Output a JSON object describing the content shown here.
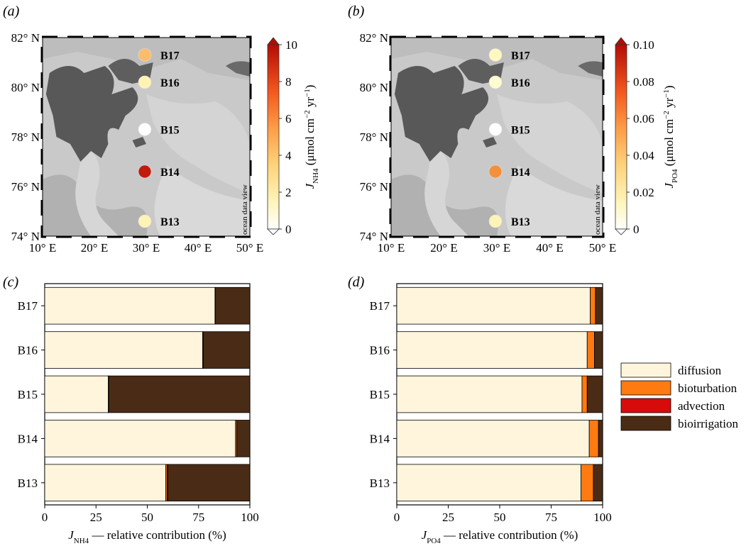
{
  "chart_data": [
    {
      "type": "map",
      "panel": "(a)",
      "lat_ticks": [
        "74° N",
        "76° N",
        "78° N",
        "80° N",
        "82° N"
      ],
      "lon_ticks": [
        "10° E",
        "20° E",
        "30° E",
        "40° E",
        "50° E"
      ],
      "watermark": "ocean data view",
      "colorbar": {
        "label_main": "J",
        "label_sub": "NH4",
        "label_unit": " (μmol cm",
        "label_exp1": "−2",
        "label_mid": " yr",
        "label_exp2": "−1",
        "label_end": ")",
        "ticks": [
          "0",
          "2",
          "4",
          "6",
          "8",
          "10"
        ],
        "range": [
          0,
          10
        ]
      },
      "stations": [
        {
          "name": "B17",
          "lat": 81.3,
          "lon": 30,
          "value": 3.6,
          "color": "#fdbb6c"
        },
        {
          "name": "B16",
          "lat": 80.2,
          "lon": 30,
          "value": 0.8,
          "color": "#fff3b3"
        },
        {
          "name": "B15",
          "lat": 78.3,
          "lon": 30,
          "value": 0.1,
          "color": "#ffffff"
        },
        {
          "name": "B14",
          "lat": 76.6,
          "lon": 30,
          "value": 9.3,
          "color": "#c21a0b"
        },
        {
          "name": "B13",
          "lat": 74.6,
          "lon": 30,
          "value": 0.9,
          "color": "#fff3b5"
        }
      ]
    },
    {
      "type": "map",
      "panel": "(b)",
      "lat_ticks": [
        "74° N",
        "76° N",
        "78° N",
        "80° N",
        "82° N"
      ],
      "lon_ticks": [
        "10° E",
        "20° E",
        "30° E",
        "40° E",
        "50° E"
      ],
      "watermark": "ocean data view",
      "colorbar": {
        "label_main": "J",
        "label_sub": "PO4",
        "label_unit": " (μmol cm",
        "label_exp1": "−2",
        "label_mid": " yr",
        "label_exp2": "−1",
        "label_end": ")",
        "ticks": [
          "0",
          "0.02",
          "0.04",
          "0.06",
          "0.08",
          "0.10"
        ],
        "range": [
          0,
          0.1
        ]
      },
      "stations": [
        {
          "name": "B17",
          "lat": 81.3,
          "lon": 30,
          "value": 0.01,
          "color": "#fef8c0"
        },
        {
          "name": "B16",
          "lat": 80.2,
          "lon": 30,
          "value": 0.008,
          "color": "#fffbd0"
        },
        {
          "name": "B15",
          "lat": 78.3,
          "lon": 30,
          "value": 0.001,
          "color": "#ffffff"
        },
        {
          "name": "B14",
          "lat": 76.6,
          "lon": 30,
          "value": 0.055,
          "color": "#f4903c"
        },
        {
          "name": "B13",
          "lat": 74.6,
          "lon": 30,
          "value": 0.012,
          "color": "#fef3b8"
        }
      ]
    },
    {
      "type": "bar",
      "panel": "(c)",
      "orientation": "horizontal",
      "stacked": true,
      "categories": [
        "B17",
        "B16",
        "B15",
        "B14",
        "B13"
      ],
      "xlabel_main": "J",
      "xlabel_sub": "NH4",
      "xlabel_rest": " — relative contribution (%)",
      "xlim": [
        0,
        100
      ],
      "xticks": [
        "0",
        "25",
        "50",
        "75",
        "100"
      ],
      "series": [
        {
          "name": "diffusion",
          "color": "#fff5dc",
          "values": [
            83,
            77,
            31,
            93,
            59
          ]
        },
        {
          "name": "bioturbation",
          "color": "#ff7a10",
          "values": [
            0.2,
            0.3,
            0.2,
            0.6,
            0.7
          ]
        },
        {
          "name": "advection",
          "color": "#d80b0b",
          "values": [
            0,
            0,
            0,
            0,
            0.4
          ]
        },
        {
          "name": "bioirrigation",
          "color": "#4a2b15",
          "values": [
            16.8,
            22.7,
            68.8,
            6.4,
            39.9
          ]
        }
      ]
    },
    {
      "type": "bar",
      "panel": "(d)",
      "orientation": "horizontal",
      "stacked": true,
      "categories": [
        "B17",
        "B16",
        "B15",
        "B14",
        "B13"
      ],
      "xlabel_main": "J",
      "xlabel_sub": "PO4",
      "xlabel_rest": " — relative contribution (%)",
      "xlim": [
        0,
        100
      ],
      "xticks": [
        "0",
        "25",
        "50",
        "75",
        "100"
      ],
      "series": [
        {
          "name": "diffusion",
          "color": "#fff5dc",
          "values": [
            94,
            92.5,
            90,
            93.5,
            89.5
          ]
        },
        {
          "name": "bioturbation",
          "color": "#ff7a10",
          "values": [
            2.5,
            3.5,
            2.5,
            4.5,
            6
          ]
        },
        {
          "name": "advection",
          "color": "#d80b0b",
          "values": [
            0,
            0,
            0,
            0,
            0
          ]
        },
        {
          "name": "bioirrigation",
          "color": "#4a2b15",
          "values": [
            3.5,
            4,
            7.5,
            2,
            4.5
          ]
        }
      ]
    }
  ],
  "legend": {
    "placement": "right",
    "items": [
      {
        "label": "diffusion",
        "color": "#fff5dc"
      },
      {
        "label": "bioturbation",
        "color": "#ff7a10"
      },
      {
        "label": "advection",
        "color": "#d80b0b"
      },
      {
        "label": "bioirrigation",
        "color": "#4a2b15"
      }
    ]
  }
}
